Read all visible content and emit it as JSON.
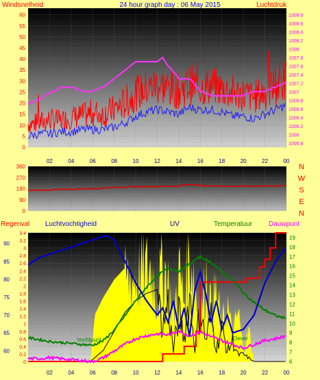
{
  "header": {
    "left_label": "Windsnelheid",
    "title": "24 hour graph day : 06 May 2015",
    "right_label": "Luchtdruk"
  },
  "colors": {
    "page_bg": "#ffff99",
    "wind_speed": "#ff0000",
    "wind_gust": "#ff0000",
    "wind_avg": "#1a1aff",
    "pressure": "#ff33ff",
    "direction": "#dd0000",
    "rain": "#ff0000",
    "humidity": "#0000cc",
    "uv": "#ffff00",
    "temperature": "#008000",
    "dewpoint": "#ff00ff",
    "solar": "#000000",
    "title_color": "#0000ff",
    "left_axis_color": "#ff0000",
    "right_axis_color": "#ff00ff"
  },
  "chart_data": [
    {
      "type": "line",
      "x_ticks": [
        "02",
        "04",
        "06",
        "08",
        "10",
        "12",
        "14",
        "16",
        "18",
        "20",
        "22",
        "00"
      ],
      "left_axis": {
        "label": "Windsnelheid",
        "ticks": [
          0,
          5,
          10,
          15,
          20,
          25,
          30,
          35,
          40,
          45,
          50,
          55,
          60
        ],
        "ylim": [
          0,
          63
        ]
      },
      "right_axis": {
        "label": "Luchtdruk",
        "ticks": [
          "1005.8",
          "1006",
          "1006.2",
          "1006.4",
          "1006.6",
          "1006.8",
          "1007",
          "1007.2",
          "1007.4",
          "1007.6",
          "1007.8",
          "1008",
          "1008.2",
          "1008.4",
          "1008.6",
          "1008.8"
        ],
        "ylim": [
          1005.7,
          1008.95
        ]
      },
      "grid": true,
      "series": [
        {
          "role": "wind_gust_upper",
          "x": [
            0,
            1,
            2,
            3,
            4,
            5,
            6,
            7,
            8,
            9,
            10,
            11,
            12,
            13,
            14,
            15,
            16,
            17,
            18,
            19,
            20,
            21,
            22,
            23,
            24
          ],
          "values": [
            15,
            16,
            18,
            17,
            19,
            20,
            22,
            21,
            24,
            28,
            33,
            35,
            38,
            36,
            34,
            38,
            36,
            37,
            35,
            33,
            32,
            30,
            34,
            38,
            42
          ]
        },
        {
          "role": "wind_gust_lower",
          "x": [
            0,
            1,
            2,
            3,
            4,
            5,
            6,
            7,
            8,
            9,
            10,
            11,
            12,
            13,
            14,
            15,
            16,
            17,
            18,
            19,
            20,
            21,
            22,
            23,
            24
          ],
          "values": [
            6,
            6,
            7,
            7,
            8,
            8,
            9,
            9,
            10,
            12,
            16,
            18,
            19,
            18,
            17,
            19,
            18,
            19,
            18,
            16,
            16,
            15,
            16,
            18,
            20
          ]
        },
        {
          "role": "wind_avg",
          "x": [
            0,
            1,
            2,
            3,
            4,
            5,
            6,
            7,
            8,
            9,
            10,
            11,
            12,
            13,
            14,
            15,
            16,
            17,
            18,
            19,
            20,
            21,
            22,
            23,
            24
          ],
          "values": [
            5,
            6,
            6,
            7,
            7,
            8,
            8,
            8,
            9,
            11,
            14,
            16,
            17,
            16,
            15,
            18,
            17,
            17,
            16,
            14,
            14,
            13,
            15,
            17,
            19
          ]
        },
        {
          "role": "pressure",
          "x": [
            0,
            1,
            1.5,
            2.5,
            3,
            4,
            5,
            6,
            7,
            8,
            9,
            10,
            10.5,
            11,
            12,
            12.5,
            13,
            14,
            15,
            16,
            17,
            18,
            19,
            20,
            21,
            22,
            23,
            24
          ],
          "values": [
            1006.7,
            1006.8,
            1006.9,
            1007.0,
            1007.1,
            1007.1,
            1007.0,
            1007.0,
            1007.1,
            1007.3,
            1007.5,
            1007.7,
            1007.7,
            1007.7,
            1007.7,
            1007.8,
            1007.6,
            1007.3,
            1007.3,
            1007.0,
            1006.9,
            1006.9,
            1006.9,
            1006.9,
            1007.0,
            1007.0,
            1007.1,
            1007.2
          ]
        }
      ]
    },
    {
      "type": "line",
      "x_ticks": [
        "02",
        "04",
        "06",
        "08",
        "10",
        "12",
        "14",
        "16",
        "18",
        "20",
        "22",
        "00"
      ],
      "left_axis": {
        "ticks": [
          0,
          90,
          180,
          270,
          360
        ],
        "ylim": [
          0,
          360
        ]
      },
      "right_axis": {
        "ticks": [
          "N",
          "W",
          "S",
          "E",
          "N"
        ]
      },
      "grid": true,
      "series": [
        {
          "role": "direction",
          "x": [
            0,
            2,
            4,
            6,
            8,
            10,
            12,
            14,
            15,
            16,
            18,
            20,
            22,
            24
          ],
          "values": [
            165,
            170,
            175,
            180,
            190,
            195,
            198,
            200,
            215,
            205,
            200,
            200,
            200,
            205
          ]
        }
      ]
    },
    {
      "type": "line",
      "x_ticks": [
        "02",
        "04",
        "06",
        "08",
        "10",
        "12",
        "14",
        "16",
        "18",
        "20",
        "22",
        "00"
      ],
      "labels": [
        "Regenval",
        "Luchtvochtigheid",
        "UV",
        "Temperatuur",
        "Dauwpunt"
      ],
      "rain_axis": {
        "ticks": [
          "0",
          "0.2",
          "0.4",
          "0.6",
          "0.8",
          "1",
          "1.2",
          "1.4",
          "1.6",
          "1.8",
          "2",
          "2.2",
          "2.4",
          "2.6",
          "2.8",
          "3",
          "3.2",
          "3.4"
        ],
        "ylim": [
          0,
          3.4
        ]
      },
      "humidity_axis": {
        "ticks": [
          60,
          65,
          70,
          75,
          80,
          85,
          90
        ],
        "ylim": [
          57,
          93
        ]
      },
      "temperature_axis": {
        "ticks": [
          6,
          7,
          8,
          9,
          10,
          11,
          12,
          13,
          14,
          15,
          16,
          17,
          18,
          19
        ],
        "ylim": [
          6,
          19.5
        ]
      },
      "annotations": [
        "Vochtpunt",
        "Oever"
      ],
      "grid": true,
      "series": [
        {
          "role": "humidity",
          "x": [
            0,
            1,
            2,
            3,
            4,
            5,
            6,
            7,
            7.5,
            8,
            9,
            10,
            11,
            12,
            12.5,
            13,
            13.5,
            14,
            14.5,
            15,
            15.5,
            16,
            16.5,
            17,
            17.5,
            18,
            18.5,
            19,
            20,
            21,
            22,
            23,
            24
          ],
          "values": [
            84,
            86,
            87,
            88,
            89,
            90,
            91,
            92,
            92,
            91,
            85,
            79,
            74,
            70,
            72,
            68,
            74,
            66,
            72,
            64,
            77,
            82,
            76,
            68,
            74,
            66,
            70,
            65,
            66,
            70,
            79,
            85,
            89
          ]
        },
        {
          "role": "temperature",
          "x": [
            0,
            1,
            2,
            3,
            4,
            5,
            6,
            7,
            8,
            9,
            10,
            11,
            12,
            13,
            14,
            15,
            16,
            17,
            18,
            19,
            20,
            21,
            22,
            23,
            24
          ],
          "values": [
            8.5,
            8.3,
            8.1,
            8.0,
            7.9,
            7.8,
            7.7,
            8.2,
            9.3,
            10.8,
            12.4,
            13.8,
            15.0,
            15.8,
            15.5,
            16.2,
            17.0,
            16.4,
            15.4,
            14.6,
            13.2,
            12.2,
            11.4,
            10.8,
            10.5
          ]
        },
        {
          "role": "dewpoint",
          "x": [
            0,
            1,
            2,
            3,
            4,
            5,
            6,
            7,
            8,
            9,
            10,
            11,
            12,
            13,
            14,
            15,
            16,
            17,
            18,
            19,
            20,
            21,
            22,
            23,
            24
          ],
          "values": [
            6.3,
            6.3,
            6.4,
            6.3,
            6.2,
            6.1,
            6.0,
            6.4,
            7.1,
            7.8,
            8.4,
            8.7,
            8.9,
            8.8,
            9.2,
            8.7,
            9.1,
            8.6,
            8.2,
            7.8,
            7.4,
            7.8,
            8.2,
            8.4,
            8.7
          ]
        },
        {
          "role": "rain",
          "x": [
            0,
            5.8,
            12.5,
            12.5,
            14.5,
            14.5,
            15.6,
            15.6,
            16,
            16,
            20.3,
            20.3,
            21.5,
            21.5,
            22,
            22,
            22.5,
            22.5,
            23,
            23,
            24
          ],
          "values": [
            0,
            0,
            0,
            0.2,
            0.2,
            0.4,
            0.4,
            0.8,
            0.8,
            2.1,
            2.1,
            2.2,
            2.2,
            2.5,
            2.5,
            2.7,
            2.7,
            3.0,
            3.0,
            3.4,
            3.4
          ]
        },
        {
          "role": "uv",
          "x": [
            0,
            5.8,
            6.2,
            7,
            8,
            9,
            10,
            11,
            11.5,
            12,
            12.5,
            13,
            13.5,
            14,
            14.5,
            15,
            15.5,
            16,
            16.5,
            17,
            17.5,
            18,
            18.5,
            19,
            19.5,
            20,
            20.5,
            21,
            24
          ],
          "values": [
            0,
            0,
            4,
            5.5,
            7,
            8,
            8.5,
            9,
            9.5,
            6,
            10,
            8,
            4,
            9,
            6,
            11,
            8,
            3,
            9,
            5,
            7,
            3,
            6,
            2,
            5,
            1,
            3,
            0,
            0
          ]
        },
        {
          "role": "solar",
          "x": [
            0,
            5.8,
            7,
            8,
            9,
            10,
            11,
            12,
            12.5,
            13,
            13.5,
            14,
            14.5,
            15,
            15.5,
            16,
            16.5,
            17,
            17.5,
            18,
            18.5,
            19,
            19.5,
            20,
            20.5,
            21,
            24
          ],
          "values": [
            0,
            0,
            0.3,
            0.8,
            1.3,
            1.6,
            1.8,
            1.9,
            1.0,
            1.7,
            0.3,
            1.4,
            0.7,
            2.0,
            0.4,
            1.6,
            0.6,
            1.3,
            0.4,
            1.0,
            0.3,
            0.6,
            0.2,
            0.2,
            0.1,
            0,
            0
          ]
        }
      ]
    }
  ],
  "bottom_titles": {
    "rain": "Regenval",
    "humidity": "Luchtvochtigheid",
    "uv": "UV",
    "temperature": "Temperatuur",
    "dewpoint": "Dauwpunt"
  },
  "mid_right_letters": [
    "N",
    "W",
    "S",
    "E",
    "N"
  ]
}
